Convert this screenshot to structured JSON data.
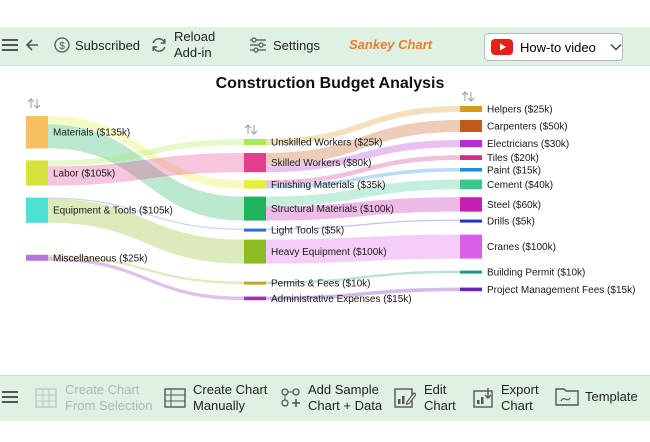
{
  "toolbar": {
    "subscribed_label": "Subscribed",
    "reload_line1": "Reload",
    "reload_line2": "Add-in",
    "settings_label": "Settings",
    "addin_name": "Sankey Chart",
    "howto_label": "How-to video"
  },
  "bottom_toolbar": {
    "create_from_selection_line1": "Create Chart",
    "create_from_selection_line2": "From Selection",
    "create_manually_line1": "Create Chart",
    "create_manually_line2": "Manually",
    "add_sample_line1": "Add Sample",
    "add_sample_line2": "Chart + Data",
    "edit_line1": "Edit",
    "edit_line2": "Chart",
    "export_line1": "Export",
    "export_line2": "Chart",
    "template_label": "Template"
  },
  "chart_data": {
    "type": "sankey",
    "title": "Construction Budget Analysis",
    "units": "$k",
    "nodes": [
      {
        "id": "materials",
        "label": "Materials ($135k)",
        "value": 135,
        "level": 0,
        "color": "#f9bf5e"
      },
      {
        "id": "labor",
        "label": "Labor ($105k)",
        "value": 105,
        "level": 0,
        "color": "#d6e33f"
      },
      {
        "id": "equipment",
        "label": "Equipment & Tools ($105k)",
        "value": 105,
        "level": 0,
        "color": "#4fe0d4"
      },
      {
        "id": "misc",
        "label": "Miscellaneous ($25k)",
        "value": 25,
        "level": 0,
        "color": "#b873dc"
      },
      {
        "id": "unskilled",
        "label": "Unskilled Workers ($25k)",
        "value": 25,
        "level": 1,
        "color": "#a8ec55"
      },
      {
        "id": "skilled",
        "label": "Skilled Workers ($80k)",
        "value": 80,
        "level": 1,
        "color": "#e43f8e"
      },
      {
        "id": "finishing",
        "label": "Finishing Materials ($35k)",
        "value": 35,
        "level": 1,
        "color": "#e5f03c"
      },
      {
        "id": "structural",
        "label": "Structural Materials ($100k)",
        "value": 100,
        "level": 1,
        "color": "#1fb35c"
      },
      {
        "id": "lighttools",
        "label": "Light Tools ($5k)",
        "value": 5,
        "level": 1,
        "color": "#2b6de0"
      },
      {
        "id": "heavy",
        "label": "Heavy Equipment ($100k)",
        "value": 100,
        "level": 1,
        "color": "#8cbb22"
      },
      {
        "id": "permits",
        "label": "Permits & Fees ($10k)",
        "value": 10,
        "level": 1,
        "color": "#bda81e"
      },
      {
        "id": "admin",
        "label": "Administrative Expenses ($15k)",
        "value": 15,
        "level": 1,
        "color": "#9b2fbf"
      },
      {
        "id": "helpers",
        "label": "Helpers ($25k)",
        "value": 25,
        "level": 2,
        "color": "#d69a1e"
      },
      {
        "id": "carpenters",
        "label": "Carpenters ($50k)",
        "value": 50,
        "level": 2,
        "color": "#c25a1b"
      },
      {
        "id": "electricians",
        "label": "Electricians ($30k)",
        "value": 30,
        "level": 2,
        "color": "#b52fd0"
      },
      {
        "id": "tiles",
        "label": "Tiles ($20k)",
        "value": 20,
        "level": 2,
        "color": "#d02f8f"
      },
      {
        "id": "paint",
        "label": "Paint ($15k)",
        "value": 15,
        "level": 2,
        "color": "#1f8ae0"
      },
      {
        "id": "cement",
        "label": "Cement ($40k)",
        "value": 40,
        "level": 2,
        "color": "#3ac98c"
      },
      {
        "id": "steel",
        "label": "Steel ($60k)",
        "value": 60,
        "level": 2,
        "color": "#c81fb3"
      },
      {
        "id": "drills",
        "label": "Drills ($5k)",
        "value": 5,
        "level": 2,
        "color": "#2034c8"
      },
      {
        "id": "cranes",
        "label": "Cranes ($100k)",
        "value": 100,
        "level": 2,
        "color": "#d95ee8"
      },
      {
        "id": "buildingpermit",
        "label": "Building Permit ($10k)",
        "value": 10,
        "level": 2,
        "color": "#19a07a"
      },
      {
        "id": "pmfees",
        "label": "Project Management Fees ($15k)",
        "value": 15,
        "level": 2,
        "color": "#6a21b5"
      }
    ],
    "links": [
      {
        "source": "materials",
        "target": "finishing",
        "value": 35
      },
      {
        "source": "materials",
        "target": "structural",
        "value": 100
      },
      {
        "source": "labor",
        "target": "unskilled",
        "value": 25
      },
      {
        "source": "labor",
        "target": "skilled",
        "value": 80
      },
      {
        "source": "equipment",
        "target": "lighttools",
        "value": 5
      },
      {
        "source": "equipment",
        "target": "heavy",
        "value": 100
      },
      {
        "source": "misc",
        "target": "permits",
        "value": 10
      },
      {
        "source": "misc",
        "target": "admin",
        "value": 15
      },
      {
        "source": "unskilled",
        "target": "helpers",
        "value": 25
      },
      {
        "source": "skilled",
        "target": "carpenters",
        "value": 50
      },
      {
        "source": "skilled",
        "target": "electricians",
        "value": 30
      },
      {
        "source": "finishing",
        "target": "tiles",
        "value": 20
      },
      {
        "source": "finishing",
        "target": "paint",
        "value": 15
      },
      {
        "source": "structural",
        "target": "cement",
        "value": 40
      },
      {
        "source": "structural",
        "target": "steel",
        "value": 60
      },
      {
        "source": "lighttools",
        "target": "drills",
        "value": 5
      },
      {
        "source": "heavy",
        "target": "cranes",
        "value": 100
      },
      {
        "source": "permits",
        "target": "buildingpermit",
        "value": 10
      },
      {
        "source": "admin",
        "target": "pmfees",
        "value": 15
      }
    ]
  }
}
